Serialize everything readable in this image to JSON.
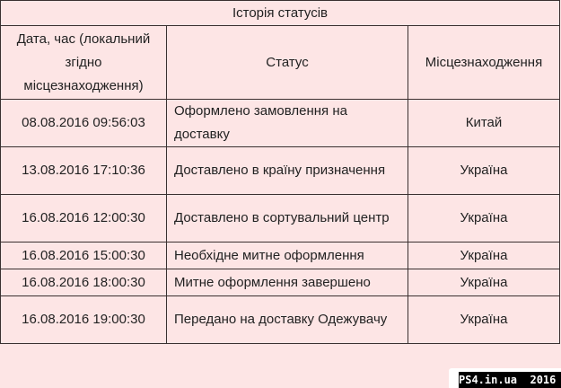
{
  "table": {
    "title": "Історія статусів",
    "headers": [
      "Дата, час (локальний згідно місцезнаходження)",
      "Статус",
      "Місцезнаходження"
    ],
    "rows": [
      {
        "datetime": "08.08.2016 09:56:03",
        "status": "Оформлено замовлення на доставку",
        "location": "Китай"
      },
      {
        "datetime": "13.08.2016 17:10:36",
        "status": "Доставлено в країну призначення",
        "location": "Україна"
      },
      {
        "datetime": "16.08.2016 12:00:30",
        "status": "Доставлено в сортувальний центр",
        "location": "Україна"
      },
      {
        "datetime": "16.08.2016 15:00:30",
        "status": "Необхідне митне оформлення",
        "location": "Україна"
      },
      {
        "datetime": "16.08.2016 18:00:30",
        "status": "Митне оформлення завершено",
        "location": "Україна"
      },
      {
        "datetime": "16.08.2016 19:00:30",
        "status": "Передано на доставку Одежувачу",
        "location": "Україна"
      }
    ]
  },
  "watermark": "PS4.in.ua  2016"
}
